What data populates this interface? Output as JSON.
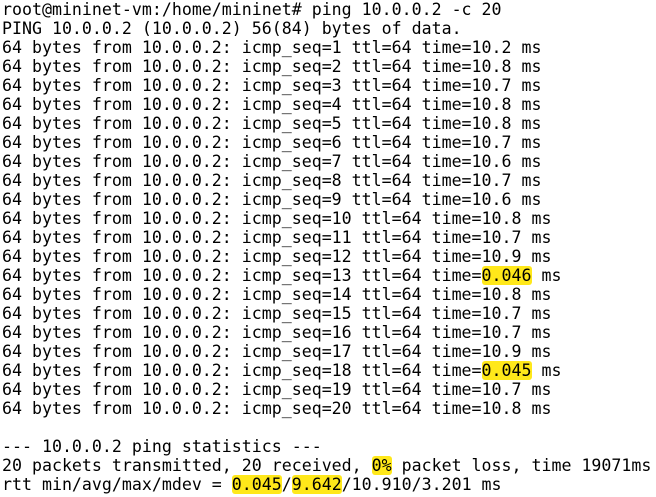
{
  "terminal": {
    "lines": [
      [
        "root@mininet-vm:/home/mininet# ping 10.0.0.2 -c 20"
      ],
      [
        "PING 10.0.0.2 (10.0.0.2) 56(84) bytes of data."
      ],
      [
        "64 bytes from 10.0.0.2: icmp_seq=1 ttl=64 time=10.2 ms"
      ],
      [
        "64 bytes from 10.0.0.2: icmp_seq=2 ttl=64 time=10.8 ms"
      ],
      [
        "64 bytes from 10.0.0.2: icmp_seq=3 ttl=64 time=10.7 ms"
      ],
      [
        "64 bytes from 10.0.0.2: icmp_seq=4 ttl=64 time=10.8 ms"
      ],
      [
        "64 bytes from 10.0.0.2: icmp_seq=5 ttl=64 time=10.8 ms"
      ],
      [
        "64 bytes from 10.0.0.2: icmp_seq=6 ttl=64 time=10.7 ms"
      ],
      [
        "64 bytes from 10.0.0.2: icmp_seq=7 ttl=64 time=10.6 ms"
      ],
      [
        "64 bytes from 10.0.0.2: icmp_seq=8 ttl=64 time=10.7 ms"
      ],
      [
        "64 bytes from 10.0.0.2: icmp_seq=9 ttl=64 time=10.6 ms"
      ],
      [
        "64 bytes from 10.0.0.2: icmp_seq=10 ttl=64 time=10.8 ms"
      ],
      [
        "64 bytes from 10.0.0.2: icmp_seq=11 ttl=64 time=10.7 ms"
      ],
      [
        "64 bytes from 10.0.0.2: icmp_seq=12 ttl=64 time=10.9 ms"
      ],
      [
        "64 bytes from 10.0.0.2: icmp_seq=13 ttl=64 time=",
        {
          "text": "0.046",
          "highlight": true
        },
        " ms"
      ],
      [
        "64 bytes from 10.0.0.2: icmp_seq=14 ttl=64 time=10.8 ms"
      ],
      [
        "64 bytes from 10.0.0.2: icmp_seq=15 ttl=64 time=10.7 ms"
      ],
      [
        "64 bytes from 10.0.0.2: icmp_seq=16 ttl=64 time=10.7 ms"
      ],
      [
        "64 bytes from 10.0.0.2: icmp_seq=17 ttl=64 time=10.9 ms"
      ],
      [
        "64 bytes from 10.0.0.2: icmp_seq=18 ttl=64 time=",
        {
          "text": "0.045",
          "highlight": true
        },
        " ms"
      ],
      [
        "64 bytes from 10.0.0.2: icmp_seq=19 ttl=64 time=10.7 ms"
      ],
      [
        "64 bytes from 10.0.0.2: icmp_seq=20 ttl=64 time=10.8 ms"
      ],
      [],
      [
        "--- 10.0.0.2 ping statistics ---"
      ],
      [
        "20 packets transmitted, 20 received, ",
        {
          "text": "0%",
          "highlight": true
        },
        " packet loss, time 19071ms"
      ],
      [
        "rtt min/avg/max/mdev = ",
        {
          "text": "0.045",
          "highlight": true
        },
        "/",
        {
          "text": "9.642",
          "highlight": true
        },
        "/10.910/3.201 ms"
      ]
    ]
  }
}
